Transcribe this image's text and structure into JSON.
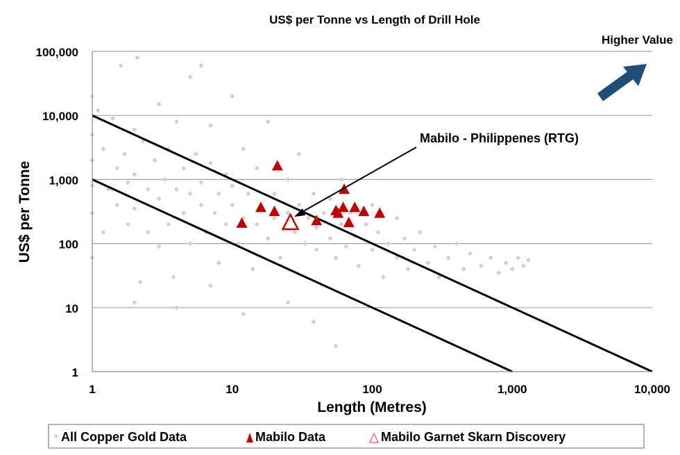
{
  "chart_data": {
    "type": "scatter",
    "title": "US$ per Tonne vs Length of Drill Hole",
    "xlabel": "Length (Metres)",
    "ylabel": "US$ per Tonne",
    "xscale": "log",
    "yscale": "log",
    "xlim": [
      1,
      10000
    ],
    "ylim": [
      1,
      100000
    ],
    "x_ticks": [
      {
        "v": 1,
        "label": "1"
      },
      {
        "v": 10,
        "label": "10"
      },
      {
        "v": 100,
        "label": "100"
      },
      {
        "v": 1000,
        "label": "1,000"
      },
      {
        "v": 10000,
        "label": "10,000"
      }
    ],
    "y_ticks": [
      {
        "v": 1,
        "label": "1"
      },
      {
        "v": 10,
        "label": "10"
      },
      {
        "v": 100,
        "label": "100"
      },
      {
        "v": 1000,
        "label": "1,000"
      },
      {
        "v": 10000,
        "label": "10,000"
      },
      {
        "v": 100000,
        "label": "100,000"
      }
    ],
    "grid": "horizontal",
    "legend_position": "bottom",
    "series": [
      {
        "name": "All Copper Gold Data",
        "marker": "diamond",
        "color": "#d0d0d0",
        "points": [
          [
            1,
            5000
          ],
          [
            1,
            2000
          ],
          [
            1,
            800
          ],
          [
            1,
            300
          ],
          [
            1,
            60
          ],
          [
            1,
            20000
          ],
          [
            1.1,
            12000
          ],
          [
            1.2,
            3000
          ],
          [
            1.3,
            700
          ],
          [
            1.2,
            150
          ],
          [
            1.4,
            9000
          ],
          [
            1.5,
            1500
          ],
          [
            1.5,
            400
          ],
          [
            1.6,
            60000
          ],
          [
            1.7,
            2500
          ],
          [
            1.8,
            900
          ],
          [
            1.8,
            200
          ],
          [
            2,
            6000
          ],
          [
            2,
            1200
          ],
          [
            2,
            350
          ],
          [
            2.1,
            80000
          ],
          [
            2.2,
            25
          ],
          [
            2.3,
            4000
          ],
          [
            2.5,
            700
          ],
          [
            2.5,
            150
          ],
          [
            2.8,
            2000
          ],
          [
            3,
            15000
          ],
          [
            3,
            500
          ],
          [
            3,
            90
          ],
          [
            3.3,
            1000
          ],
          [
            3.5,
            3000
          ],
          [
            3.5,
            200
          ],
          [
            3.8,
            30
          ],
          [
            4,
            700
          ],
          [
            4,
            8000
          ],
          [
            4.5,
            1500
          ],
          [
            4.5,
            300
          ],
          [
            5,
            40000
          ],
          [
            5,
            600
          ],
          [
            5,
            100
          ],
          [
            5.5,
            2500
          ],
          [
            6,
            60000
          ],
          [
            6,
            400
          ],
          [
            6,
            900
          ],
          [
            6.5,
            150
          ],
          [
            7,
            1800
          ],
          [
            7,
            7000
          ],
          [
            7.5,
            300
          ],
          [
            8,
            600
          ],
          [
            8,
            50
          ],
          [
            9,
            1200
          ],
          [
            9,
            200
          ],
          [
            10,
            20000
          ],
          [
            10,
            400
          ],
          [
            10,
            800
          ],
          [
            11,
            100
          ],
          [
            12,
            3000
          ],
          [
            12,
            250
          ],
          [
            13,
            600
          ],
          [
            14,
            40
          ],
          [
            15,
            1500
          ],
          [
            15,
            200
          ],
          [
            16,
            400
          ],
          [
            18,
            8000
          ],
          [
            18,
            120
          ],
          [
            20,
            600
          ],
          [
            20,
            250
          ],
          [
            22,
            60
          ],
          [
            25,
            300
          ],
          [
            25,
            1000
          ],
          [
            28,
            150
          ],
          [
            30,
            400
          ],
          [
            30,
            2500
          ],
          [
            33,
            100
          ],
          [
            35,
            250
          ],
          [
            38,
            600
          ],
          [
            40,
            80
          ],
          [
            40,
            180
          ],
          [
            45,
            300
          ],
          [
            50,
            120
          ],
          [
            50,
            500
          ],
          [
            55,
            60
          ],
          [
            60,
            200
          ],
          [
            60,
            1000
          ],
          [
            65,
            90
          ],
          [
            70,
            300
          ],
          [
            75,
            130
          ],
          [
            80,
            45
          ],
          [
            90,
            200
          ],
          [
            100,
            80
          ],
          [
            100,
            400
          ],
          [
            110,
            150
          ],
          [
            120,
            30
          ],
          [
            130,
            100
          ],
          [
            150,
            60
          ],
          [
            150,
            250
          ],
          [
            170,
            120
          ],
          [
            180,
            40
          ],
          [
            200,
            80
          ],
          [
            220,
            150
          ],
          [
            250,
            50
          ],
          [
            280,
            90
          ],
          [
            300,
            30
          ],
          [
            350,
            60
          ],
          [
            400,
            100
          ],
          [
            450,
            40
          ],
          [
            500,
            70
          ],
          [
            600,
            45
          ],
          [
            700,
            60
          ],
          [
            800,
            35
          ],
          [
            900,
            50
          ],
          [
            1000,
            40
          ],
          [
            1100,
            60
          ],
          [
            1200,
            45
          ],
          [
            1300,
            55
          ],
          [
            55,
            2.5
          ],
          [
            38,
            6
          ],
          [
            25,
            12
          ],
          [
            12,
            8
          ],
          [
            4,
            10
          ],
          [
            7,
            22
          ],
          [
            2,
            12
          ]
        ]
      },
      {
        "name": "Mabilo Data",
        "marker": "triangle-filled",
        "color": "#c00000",
        "points": [
          [
            11.7,
            210
          ],
          [
            16,
            370
          ],
          [
            20,
            320
          ],
          [
            21,
            1650
          ],
          [
            40,
            230
          ],
          [
            55,
            330
          ],
          [
            57,
            300
          ],
          [
            62,
            370
          ],
          [
            63,
            710
          ],
          [
            68,
            215
          ],
          [
            75,
            370
          ],
          [
            87,
            320
          ],
          [
            113,
            300
          ]
        ]
      },
      {
        "name": "Mabilo Garnet Skarn Discovery",
        "marker": "triangle-open",
        "color": "#c00000",
        "points": [
          [
            26,
            215
          ]
        ]
      }
    ],
    "reference_lines": [
      {
        "from": [
          1,
          10000
        ],
        "to": [
          10000,
          1
        ]
      },
      {
        "from": [
          1,
          1000
        ],
        "to": [
          1000,
          1
        ]
      }
    ],
    "annotations": {
      "mabilo_label": "Mabilo - Philippenes (RTG)",
      "mabilo_arrow_target": [
        28,
        250
      ],
      "higher_value_label": "Higher Value",
      "higher_value_color": "#1f4e79"
    }
  }
}
